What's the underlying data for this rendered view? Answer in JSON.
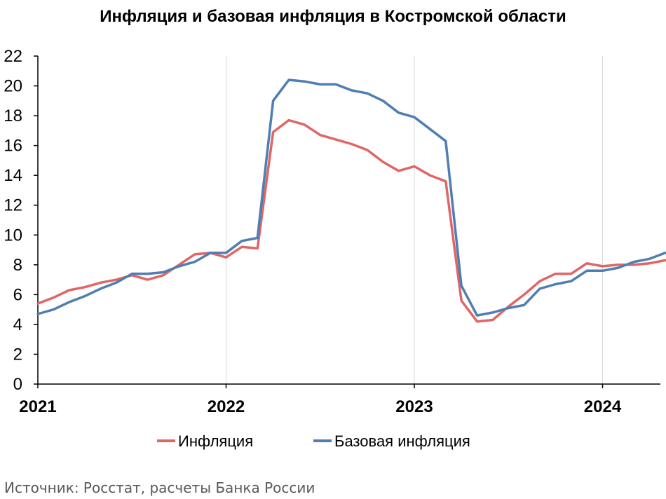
{
  "chart_data": {
    "type": "line",
    "title": "Инфляция и базовая инфляция в Костромской области",
    "xlabel": "",
    "ylabel": "",
    "ylim": [
      0,
      22
    ],
    "yticks": [
      0,
      2,
      4,
      6,
      8,
      10,
      12,
      14,
      16,
      18,
      20,
      22
    ],
    "x_labels": [
      "2021",
      "2022",
      "2023",
      "2024"
    ],
    "x": [
      "2021-01",
      "2021-02",
      "2021-03",
      "2021-04",
      "2021-05",
      "2021-06",
      "2021-07",
      "2021-08",
      "2021-09",
      "2021-10",
      "2021-11",
      "2021-12",
      "2022-01",
      "2022-02",
      "2022-03",
      "2022-04",
      "2022-05",
      "2022-06",
      "2022-07",
      "2022-08",
      "2022-09",
      "2022-10",
      "2022-11",
      "2022-12",
      "2023-01",
      "2023-02",
      "2023-03",
      "2023-04",
      "2023-05",
      "2023-06",
      "2023-07",
      "2023-08",
      "2023-09",
      "2023-10",
      "2023-11",
      "2023-12",
      "2024-01",
      "2024-02",
      "2024-03",
      "2024-04",
      "2024-05"
    ],
    "grid": "vertical",
    "legend_position": "bottom",
    "series": [
      {
        "name": "Инфляция",
        "color": "#e06666",
        "values": [
          5.4,
          5.8,
          6.3,
          6.5,
          6.8,
          7.0,
          7.3,
          7.0,
          7.3,
          8.0,
          8.7,
          8.8,
          8.5,
          9.2,
          9.1,
          16.9,
          17.7,
          17.4,
          16.7,
          16.4,
          16.1,
          15.7,
          14.9,
          14.3,
          14.6,
          14.0,
          13.6,
          5.6,
          4.2,
          4.3,
          5.2,
          6.0,
          6.9,
          7.4,
          7.4,
          8.1,
          7.9,
          8.0,
          8.0,
          8.1,
          8.3
        ]
      },
      {
        "name": "Базовая инфляция",
        "color": "#4f7eb3",
        "values": [
          4.7,
          5.0,
          5.5,
          5.9,
          6.4,
          6.8,
          7.4,
          7.4,
          7.5,
          7.9,
          8.2,
          8.8,
          8.8,
          9.6,
          9.8,
          19.0,
          20.4,
          20.3,
          20.1,
          20.1,
          19.7,
          19.5,
          19.0,
          18.2,
          17.9,
          17.1,
          16.3,
          6.6,
          4.6,
          4.8,
          5.1,
          5.3,
          6.4,
          6.7,
          6.9,
          7.6,
          7.6,
          7.8,
          8.2,
          8.4,
          8.8
        ]
      }
    ]
  },
  "source_note": "Источник: Росстат, расчеты Банка России"
}
